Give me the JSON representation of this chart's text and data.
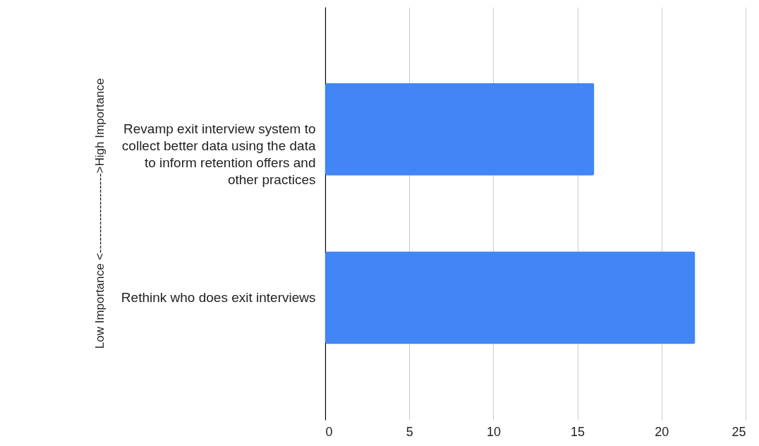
{
  "chart_data": {
    "type": "bar",
    "orientation": "horizontal",
    "ylabel": "Low Importance <-------------------->High Importance",
    "categories": [
      "Revamp exit interview system to collect better data using the data to inform retention offers and other practices",
      "Rethink who does exit interviews"
    ],
    "values": [
      16,
      22
    ],
    "color": "#4285f4",
    "xlim": [
      0,
      25
    ],
    "xticks": [
      0,
      5,
      10,
      15,
      20,
      25
    ],
    "grid": "x"
  }
}
